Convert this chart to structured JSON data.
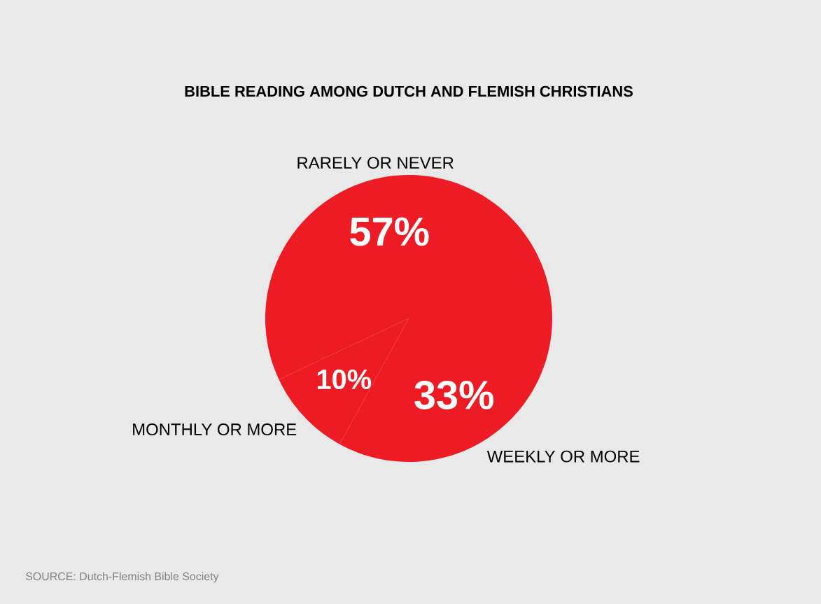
{
  "chart_data": {
    "type": "pie",
    "title": "BIBLE READING AMONG DUTCH AND FLEMISH CHRISTIANS",
    "categories": [
      "RARELY OR NEVER",
      "MONTHLY OR MORE",
      "WEEKLY OR MORE"
    ],
    "values": [
      57,
      10,
      33
    ],
    "value_labels": [
      "57%",
      "10%",
      "33%"
    ],
    "colors": [
      "#ed1c24",
      "#ed1c24",
      "#ed1c24"
    ],
    "annotations": [
      "SOURCE: Dutch-Flemish Bible Society"
    ]
  }
}
